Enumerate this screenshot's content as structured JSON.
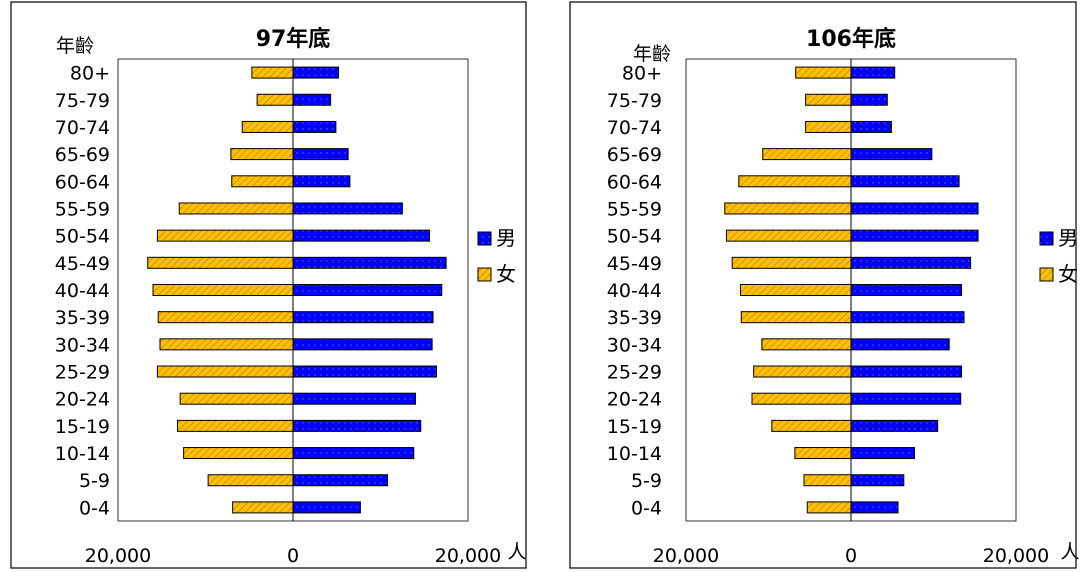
{
  "chart_data": [
    {
      "type": "bar",
      "orientation": "horizontal-population-pyramid",
      "title": "97年底",
      "ylabel": "年齡",
      "xlabel": "人",
      "categories": [
        "0-4",
        "5-9",
        "10-14",
        "15-19",
        "20-24",
        "25-29",
        "30-34",
        "35-39",
        "40-44",
        "45-49",
        "50-54",
        "55-59",
        "60-64",
        "65-69",
        "70-74",
        "75-79",
        "80+"
      ],
      "xlim": [
        -20000,
        20000
      ],
      "xticks": [
        "20,000",
        "0",
        "20,000"
      ],
      "series": [
        {
          "name": "男",
          "color": "#0000ff",
          "values": [
            7700,
            10800,
            13800,
            14600,
            14000,
            16400,
            15900,
            16000,
            17000,
            17500,
            15600,
            12500,
            6500,
            6300,
            4900,
            4300,
            5200
          ]
        },
        {
          "name": "女",
          "color": "#ffc000",
          "values": [
            6900,
            9700,
            12500,
            13200,
            12900,
            15500,
            15200,
            15400,
            16000,
            16600,
            15500,
            13000,
            7000,
            7100,
            5800,
            4100,
            4700
          ]
        }
      ],
      "legend": "right"
    },
    {
      "type": "bar",
      "orientation": "horizontal-population-pyramid",
      "title": "106年底",
      "ylabel": "年齡",
      "xlabel": "人",
      "categories": [
        "0-4",
        "5-9",
        "10-14",
        "15-19",
        "20-24",
        "25-29",
        "30-34",
        "35-39",
        "40-44",
        "45-49",
        "50-54",
        "55-59",
        "60-64",
        "65-69",
        "70-74",
        "75-79",
        "80+"
      ],
      "xlim": [
        -20000,
        20000
      ],
      "xticks": [
        "20,000",
        "0",
        "20,000"
      ],
      "series": [
        {
          "name": "男",
          "color": "#0000ff",
          "values": [
            5700,
            6400,
            7700,
            10500,
            13300,
            13400,
            11900,
            13700,
            13400,
            14500,
            15400,
            15400,
            13100,
            9800,
            4900,
            4400,
            5300
          ]
        },
        {
          "name": "女",
          "color": "#ffc000",
          "values": [
            5300,
            5700,
            6800,
            9600,
            12000,
            11800,
            10800,
            13300,
            13400,
            14400,
            15100,
            15300,
            13600,
            10700,
            5500,
            5500,
            6700
          ]
        }
      ],
      "legend": "right"
    }
  ]
}
